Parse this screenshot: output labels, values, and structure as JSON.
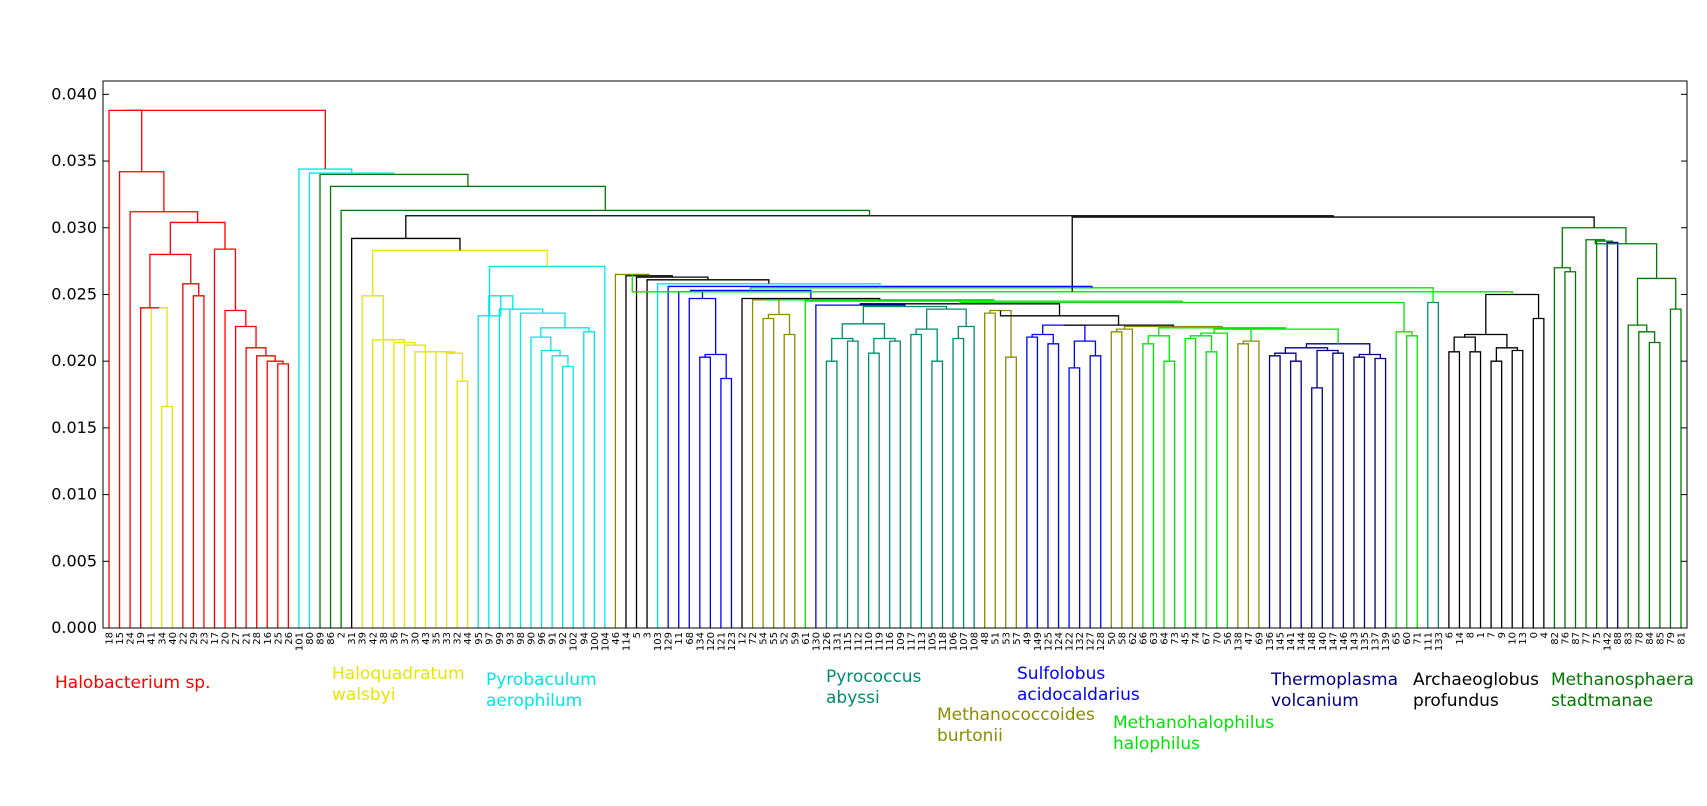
{
  "chart_data": {
    "type": "dendrogram",
    "ylim": [
      0,
      0.041
    ],
    "yticks": [
      "0.000",
      "0.005",
      "0.010",
      "0.015",
      "0.020",
      "0.025",
      "0.030",
      "0.035",
      "0.040"
    ],
    "leaves": [
      "18",
      "15",
      "24",
      "19",
      "41",
      "34",
      "40",
      "22",
      "29",
      "23",
      "17",
      "20",
      "27",
      "21",
      "28",
      "16",
      "25",
      "26",
      "101",
      "80",
      "89",
      "86",
      "2",
      "31",
      "39",
      "42",
      "38",
      "36",
      "37",
      "30",
      "43",
      "35",
      "33",
      "32",
      "44",
      "95",
      "97",
      "99",
      "93",
      "98",
      "90",
      "96",
      "91",
      "92",
      "102",
      "94",
      "100",
      "104",
      "46",
      "114",
      "5",
      "3",
      "103",
      "129",
      "11",
      "68",
      "134",
      "120",
      "121",
      "123",
      "12",
      "72",
      "54",
      "55",
      "52",
      "59",
      "61",
      "130",
      "126",
      "131",
      "115",
      "112",
      "110",
      "119",
      "116",
      "109",
      "117",
      "113",
      "105",
      "118",
      "106",
      "107",
      "108",
      "48",
      "51",
      "53",
      "57",
      "49",
      "149",
      "125",
      "124",
      "122",
      "132",
      "127",
      "128",
      "50",
      "58",
      "62",
      "66",
      "63",
      "64",
      "73",
      "45",
      "74",
      "67",
      "70",
      "56",
      "138",
      "47",
      "69",
      "136",
      "145",
      "141",
      "144",
      "148",
      "140",
      "147",
      "146",
      "143",
      "135",
      "137",
      "139",
      "65",
      "60",
      "71",
      "111",
      "133",
      "6",
      "14",
      "8",
      "1",
      "7",
      "9",
      "10",
      "13",
      "0",
      "4",
      "82",
      "76",
      "87",
      "77",
      "75",
      "142",
      "88",
      "83",
      "78",
      "84",
      "85",
      "79",
      "81"
    ],
    "group_labels": [
      {
        "name": "Halobacterium sp.",
        "color": "#ff0000"
      },
      {
        "name": "Haloquadratum walsbyi",
        "lines": [
          "Haloquadratum",
          "walsbyi"
        ],
        "color": "#e6e600"
      },
      {
        "name": "Pyrobaculum aerophilum",
        "lines": [
          "Pyrobaculum",
          "aerophilum"
        ],
        "color": "#00e6e6"
      },
      {
        "name": "Pyrococcus abyssi",
        "lines": [
          "Pyrococcus",
          "abyssi"
        ],
        "color": "#008c6e"
      },
      {
        "name": "Methanococcoides burtonii",
        "lines": [
          "Methanococcoides",
          "burtonii"
        ],
        "color": "#8c8c00"
      },
      {
        "name": "Sulfolobus acidocaldarius",
        "lines": [
          "Sulfolobus",
          "acidocaldarius"
        ],
        "color": "#0000ff"
      },
      {
        "name": "Methanohalophilus halophilus",
        "lines": [
          "Methanohalophilus",
          "halophilus"
        ],
        "color": "#00e600"
      },
      {
        "name": "Thermoplasma volcanium",
        "lines": [
          "Thermoplasma",
          "volcanium"
        ],
        "color": "#000080"
      },
      {
        "name": "Archaeoglobus profundus",
        "lines": [
          "Archaeoglobus",
          "profundus"
        ],
        "color": "#000000"
      },
      {
        "name": "Methanosphaera stadtmanae",
        "lines": [
          "Methanosphaera",
          "stadtmanae"
        ],
        "color": "#007800"
      }
    ],
    "merges": [
      {
        "a": [
          "34"
        ],
        "b": [
          "40"
        ],
        "h": 0.0166,
        "color": "#e6e600"
      },
      {
        "a": [
          "41"
        ],
        "b": [
          "34",
          "40"
        ],
        "h": 0.024,
        "color": "#e6e600"
      },
      {
        "a": [
          "19"
        ],
        "b": [
          "41",
          "34",
          "40"
        ],
        "h": 0.024,
        "color": "#ff0000"
      },
      {
        "a": [
          "29"
        ],
        "b": [
          "23"
        ],
        "h": 0.0249,
        "color": "#ff0000"
      },
      {
        "a": [
          "22"
        ],
        "b": [
          "29",
          "23"
        ],
        "h": 0.0258,
        "color": "#ff0000"
      },
      {
        "a": [
          "19",
          "41",
          "34",
          "40"
        ],
        "b": [
          "22",
          "29",
          "23"
        ],
        "h": 0.028,
        "color": "#ff0000"
      },
      {
        "a": [
          "25"
        ],
        "b": [
          "26"
        ],
        "h": 0.0198,
        "color": "#ff0000"
      },
      {
        "a": [
          "16"
        ],
        "b": [
          "25",
          "26"
        ],
        "h": 0.02,
        "color": "#ff0000"
      },
      {
        "a": [
          "28"
        ],
        "b": [
          "16",
          "25",
          "26"
        ],
        "h": 0.0204,
        "color": "#ff0000"
      },
      {
        "a": [
          "21"
        ],
        "b": [
          "28",
          "16",
          "25",
          "26"
        ],
        "h": 0.021,
        "color": "#ff0000"
      },
      {
        "a": [
          "27"
        ],
        "b": [
          "21",
          "28",
          "16",
          "25",
          "26"
        ],
        "h": 0.0226,
        "color": "#ff0000"
      },
      {
        "a": [
          "20"
        ],
        "b": [
          "27",
          "21",
          "28",
          "16",
          "25",
          "26"
        ],
        "h": 0.0238,
        "color": "#ff0000"
      },
      {
        "a": [
          "17"
        ],
        "b": [
          "20",
          "27",
          "21",
          "28",
          "16",
          "25",
          "26"
        ],
        "h": 0.0284,
        "color": "#ff0000"
      },
      {
        "a": [
          "19",
          "41",
          "34",
          "40",
          "22",
          "29",
          "23"
        ],
        "b": [
          "17",
          "20",
          "27",
          "21",
          "28",
          "16",
          "25",
          "26"
        ],
        "h": 0.0304,
        "color": "#ff0000"
      },
      {
        "a": [
          "24"
        ],
        "b": [
          "19",
          "41",
          "34",
          "40",
          "22",
          "29",
          "23",
          "17",
          "20",
          "27",
          "21",
          "28",
          "16",
          "25",
          "26"
        ],
        "h": 0.0312,
        "color": "#ff0000"
      },
      {
        "a": [
          "15"
        ],
        "b": [
          "24",
          "19",
          "41",
          "34",
          "40",
          "22",
          "29",
          "23",
          "17",
          "20",
          "27",
          "21",
          "28",
          "16",
          "25",
          "26"
        ],
        "h": 0.0342,
        "color": "#ff0000"
      },
      {
        "a": [
          "18"
        ],
        "b": [
          "15",
          "24",
          "19",
          "41",
          "34",
          "40",
          "22",
          "29",
          "23",
          "17",
          "20",
          "27",
          "21",
          "28",
          "16",
          "25",
          "26"
        ],
        "h": 0.0388,
        "color": "#ff0000"
      },
      {
        "a": [
          "32"
        ],
        "b": [
          "44"
        ],
        "h": 0.0185,
        "color": "#e6e600"
      },
      {
        "a": [
          "33"
        ],
        "b": [
          "32",
          "44"
        ],
        "h": 0.0206,
        "color": "#e6e600"
      },
      {
        "a": [
          "35"
        ],
        "b": [
          "33",
          "32",
          "44"
        ],
        "h": 0.0207,
        "color": "#e6e600"
      },
      {
        "a": [
          "43"
        ],
        "b": [
          "35",
          "33",
          "32",
          "44"
        ],
        "h": 0.0207,
        "color": "#e6e600"
      },
      {
        "a": [
          "30"
        ],
        "b": [
          "43",
          "35",
          "33",
          "32",
          "44"
        ],
        "h": 0.0207,
        "color": "#e6e600"
      },
      {
        "a": [
          "37"
        ],
        "b": [
          "30",
          "43",
          "35",
          "33",
          "32",
          "44"
        ],
        "h": 0.0212,
        "color": "#e6e600"
      },
      {
        "a": [
          "36"
        ],
        "b": [
          "37",
          "30",
          "43",
          "35",
          "33",
          "32",
          "44"
        ],
        "h": 0.0214,
        "color": "#e6e600"
      },
      {
        "a": [
          "38"
        ],
        "b": [
          "36",
          "37",
          "30",
          "43",
          "35",
          "33",
          "32",
          "44"
        ],
        "h": 0.0216,
        "color": "#e6e600"
      },
      {
        "a": [
          "42"
        ],
        "b": [
          "38",
          "36",
          "37",
          "30",
          "43",
          "35",
          "33",
          "32",
          "44"
        ],
        "h": 0.0216,
        "color": "#e6e600"
      },
      {
        "a": [
          "39"
        ],
        "b": [
          "42",
          "38",
          "36",
          "37",
          "30",
          "43",
          "35",
          "33",
          "32",
          "44"
        ],
        "h": 0.0249,
        "color": "#e6e600"
      },
      {
        "a": [
          "92"
        ],
        "b": [
          "102"
        ],
        "h": 0.0196,
        "color": "#00e6e6"
      },
      {
        "a": [
          "91"
        ],
        "b": [
          "92",
          "102"
        ],
        "h": 0.0204,
        "color": "#00e6e6"
      },
      {
        "a": [
          "96"
        ],
        "b": [
          "91",
          "92",
          "102"
        ],
        "h": 0.0208,
        "color": "#00e6e6"
      },
      {
        "a": [
          "90"
        ],
        "b": [
          "96",
          "91",
          "92",
          "102"
        ],
        "h": 0.0218,
        "color": "#00e6e6"
      },
      {
        "a": [
          "94"
        ],
        "b": [
          "100"
        ],
        "h": 0.0222,
        "color": "#00e6e6"
      },
      {
        "a": [
          "90",
          "96",
          "91",
          "92",
          "102"
        ],
        "b": [
          "94",
          "100"
        ],
        "h": 0.0225,
        "color": "#00e6e6"
      },
      {
        "a": [
          "98"
        ],
        "b": [
          "90",
          "96",
          "91",
          "92",
          "102",
          "94",
          "100"
        ],
        "h": 0.0236,
        "color": "#00e6e6"
      },
      {
        "a": [
          "93"
        ],
        "b": [
          "98",
          "90",
          "96",
          "91",
          "92",
          "102",
          "94",
          "100"
        ],
        "h": 0.0239,
        "color": "#00e6e6"
      },
      {
        "a": [
          "99"
        ],
        "b": [
          "93",
          "98",
          "90",
          "96",
          "91",
          "92",
          "102",
          "94",
          "100"
        ],
        "h": 0.0239,
        "color": "#00e6e6"
      },
      {
        "a": [
          "97"
        ],
        "b": [
          "99",
          "93",
          "98",
          "90",
          "96",
          "91",
          "92",
          "102",
          "94",
          "100"
        ],
        "h": 0.0249,
        "color": "#00e6e6"
      },
      {
        "a": [
          "95"
        ],
        "b": [
          "97",
          "99",
          "93",
          "98",
          "90",
          "96",
          "91",
          "92",
          "102",
          "94",
          "100"
        ],
        "h": 0.0234,
        "color": "#00e6e6"
      },
      {
        "a": [
          "95",
          "97",
          "99",
          "93",
          "98",
          "90",
          "96",
          "91",
          "92",
          "102",
          "94",
          "100"
        ],
        "b": [
          "104"
        ],
        "h": 0.0271,
        "color": "#00e6e6"
      }
    ]
  }
}
